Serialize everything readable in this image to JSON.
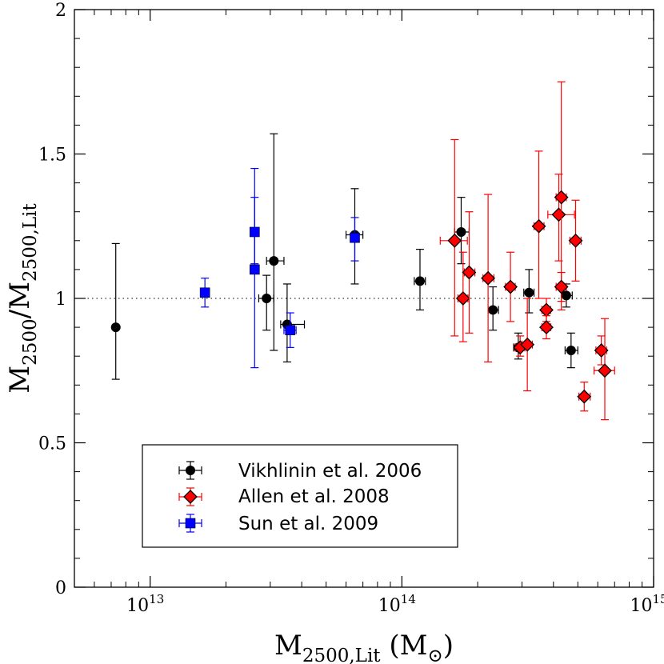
{
  "chart_data": {
    "type": "scatter",
    "xscale": "log",
    "xlim": [
      5000000000000.0,
      1000000000000000.0
    ],
    "ylim": [
      0,
      2
    ],
    "x_ticks": [
      {
        "value": 10000000000000.0,
        "base": "10",
        "exp": "13"
      },
      {
        "value": 100000000000000.0,
        "base": "10",
        "exp": "14"
      },
      {
        "value": 1000000000000000.0,
        "base": "10",
        "exp": "15"
      }
    ],
    "y_ticks": [
      {
        "value": 0,
        "label": "0"
      },
      {
        "value": 0.5,
        "label": "0.5"
      },
      {
        "value": 1,
        "label": "1"
      },
      {
        "value": 1.5,
        "label": "1.5"
      },
      {
        "value": 2,
        "label": "2"
      }
    ],
    "xlabel": {
      "main": "M",
      "sub": "2500,Lit",
      "unit_open": " (M",
      "unit_sub": "⊙",
      "unit_close": ")"
    },
    "ylabel": {
      "m1": "M",
      "s1": "2500",
      "mid": "/M",
      "s2": "2500,Lit"
    },
    "reference_line": {
      "y": 1,
      "style": "dotted"
    },
    "legend_position": "bottom-left",
    "series": [
      {
        "name": "Vikhlinin et al. 2006",
        "color": "#000000",
        "marker": "circle",
        "points": [
          {
            "x": 7300000000000.0,
            "y": 0.9,
            "ylo": 0.72,
            "yhi": 1.19,
            "xlo": 7300000000000.0,
            "xhi": 7300000000000.0
          },
          {
            "x": 29000000000000.0,
            "y": 1.0,
            "ylo": 0.89,
            "yhi": 1.08,
            "xlo": 27000000000000.0,
            "xhi": 31000000000000.0
          },
          {
            "x": 31000000000000.0,
            "y": 1.13,
            "ylo": 0.82,
            "yhi": 1.57,
            "xlo": 29000000000000.0,
            "xhi": 34000000000000.0
          },
          {
            "x": 35000000000000.0,
            "y": 0.91,
            "ylo": 0.78,
            "yhi": 1.05,
            "xlo": 33000000000000.0,
            "xhi": 41000000000000.0
          },
          {
            "x": 65000000000000.0,
            "y": 1.22,
            "ylo": 1.05,
            "yhi": 1.38,
            "xlo": 60000000000000.0,
            "xhi": 70000000000000.0
          },
          {
            "x": 118000000000000.0,
            "y": 1.06,
            "ylo": 0.96,
            "yhi": 1.17,
            "xlo": 112000000000000.0,
            "xhi": 124000000000000.0
          },
          {
            "x": 172000000000000.0,
            "y": 1.23,
            "ylo": 1.12,
            "yhi": 1.35,
            "xlo": 162000000000000.0,
            "xhi": 185000000000000.0
          },
          {
            "x": 230000000000000.0,
            "y": 0.96,
            "ylo": 0.89,
            "yhi": 1.04,
            "xlo": 220000000000000.0,
            "xhi": 242000000000000.0
          },
          {
            "x": 290000000000000.0,
            "y": 0.83,
            "ylo": 0.79,
            "yhi": 0.88,
            "xlo": 278000000000000.0,
            "xhi": 302000000000000.0
          },
          {
            "x": 320000000000000.0,
            "y": 1.02,
            "ylo": 0.95,
            "yhi": 1.1,
            "xlo": 305000000000000.0,
            "xhi": 335000000000000.0
          },
          {
            "x": 450000000000000.0,
            "y": 1.01,
            "ylo": 0.97,
            "yhi": 1.05,
            "xlo": 430000000000000.0,
            "xhi": 475000000000000.0
          },
          {
            "x": 470000000000000.0,
            "y": 0.82,
            "ylo": 0.76,
            "yhi": 0.88,
            "xlo": 445000000000000.0,
            "xhi": 500000000000000.0
          }
        ]
      },
      {
        "name": "Allen et al. 2008",
        "color": "#ff0000",
        "marker": "diamond",
        "points": [
          {
            "x": 162000000000000.0,
            "y": 1.2,
            "ylo": 0.87,
            "yhi": 1.55,
            "xlo": 142000000000000.0,
            "xhi": 182000000000000.0
          },
          {
            "x": 175000000000000.0,
            "y": 1.0,
            "ylo": 0.85,
            "yhi": 1.16,
            "xlo": 167000000000000.0,
            "xhi": 183000000000000.0
          },
          {
            "x": 185000000000000.0,
            "y": 1.09,
            "ylo": 0.88,
            "yhi": 1.3,
            "xlo": 177000000000000.0,
            "xhi": 195000000000000.0
          },
          {
            "x": 220000000000000.0,
            "y": 1.07,
            "ylo": 0.78,
            "yhi": 1.36,
            "xlo": 210000000000000.0,
            "xhi": 232000000000000.0
          },
          {
            "x": 270000000000000.0,
            "y": 1.04,
            "ylo": 0.92,
            "yhi": 1.16,
            "xlo": 258000000000000.0,
            "xhi": 282000000000000.0
          },
          {
            "x": 295000000000000.0,
            "y": 0.83,
            "ylo": 0.8,
            "yhi": 0.87,
            "xlo": 282000000000000.0,
            "xhi": 308000000000000.0
          },
          {
            "x": 315000000000000.0,
            "y": 0.84,
            "ylo": 0.68,
            "yhi": 1.0,
            "xlo": 300000000000000.0,
            "xhi": 330000000000000.0
          },
          {
            "x": 350000000000000.0,
            "y": 1.25,
            "ylo": 1.0,
            "yhi": 1.51,
            "xlo": 335000000000000.0,
            "xhi": 367000000000000.0
          },
          {
            "x": 375000000000000.0,
            "y": 0.96,
            "ylo": 0.92,
            "yhi": 1.0,
            "xlo": 360000000000000.0,
            "xhi": 390000000000000.0
          },
          {
            "x": 375000000000000.0,
            "y": 0.9,
            "ylo": 0.86,
            "yhi": 0.94,
            "xlo": 360000000000000.0,
            "xhi": 390000000000000.0
          },
          {
            "x": 420000000000000.0,
            "y": 1.29,
            "ylo": 1.13,
            "yhi": 1.43,
            "xlo": 380000000000000.0,
            "xhi": 485000000000000.0
          },
          {
            "x": 430000000000000.0,
            "y": 1.35,
            "ylo": 0.96,
            "yhi": 1.75,
            "xlo": 410000000000000.0,
            "xhi": 450000000000000.0
          },
          {
            "x": 430000000000000.0,
            "y": 1.04,
            "ylo": 0.99,
            "yhi": 1.09,
            "xlo": 410000000000000.0,
            "xhi": 450000000000000.0
          },
          {
            "x": 490000000000000.0,
            "y": 1.2,
            "ylo": 1.06,
            "yhi": 1.34,
            "xlo": 465000000000000.0,
            "xhi": 515000000000000.0
          },
          {
            "x": 530000000000000.0,
            "y": 0.66,
            "ylo": 0.61,
            "yhi": 0.71,
            "xlo": 505000000000000.0,
            "xhi": 560000000000000.0
          },
          {
            "x": 620000000000000.0,
            "y": 0.82,
            "ylo": 0.77,
            "yhi": 0.87,
            "xlo": 590000000000000.0,
            "xhi": 650000000000000.0
          },
          {
            "x": 640000000000000.0,
            "y": 0.75,
            "ylo": 0.58,
            "yhi": 0.93,
            "xlo": 580000000000000.0,
            "xhi": 700000000000000.0
          }
        ]
      },
      {
        "name": "Sun et al. 2009",
        "color": "#0000ff",
        "marker": "square",
        "points": [
          {
            "x": 16500000000000.0,
            "y": 1.02,
            "ylo": 0.97,
            "yhi": 1.07,
            "xlo": 16500000000000.0,
            "xhi": 16500000000000.0
          },
          {
            "x": 26000000000000.0,
            "y": 1.23,
            "ylo": 1.12,
            "yhi": 1.35,
            "xlo": 25200000000000.0,
            "xhi": 27000000000000.0
          },
          {
            "x": 26000000000000.0,
            "y": 1.1,
            "ylo": 0.76,
            "yhi": 1.45,
            "xlo": 25200000000000.0,
            "xhi": 27000000000000.0
          },
          {
            "x": 36000000000000.0,
            "y": 0.89,
            "ylo": 0.83,
            "yhi": 0.95,
            "xlo": 34000000000000.0,
            "xhi": 38000000000000.0
          },
          {
            "x": 65000000000000.0,
            "y": 1.21,
            "ylo": 1.13,
            "yhi": 1.28,
            "xlo": 63000000000000.0,
            "xhi": 67000000000000.0
          }
        ]
      }
    ]
  }
}
